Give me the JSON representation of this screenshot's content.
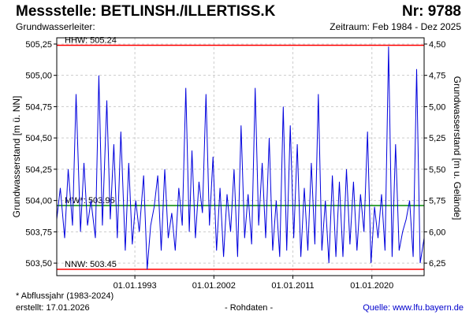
{
  "header": {
    "title": "Messstelle: BETLINSH./ILLERTISS.K",
    "number": "Nr: 9788",
    "aquifer_label": "Grundwasserleiter:",
    "period": "Zeitraum: Feb 1984 - Dez 2025"
  },
  "footer": {
    "footnote": "* Abflussjahr (1983-2024)",
    "created": "erstellt:  17.01.2026",
    "raw_data": "- Rohdaten -",
    "source": "Quelle: www.lfu.bayern.de"
  },
  "colors": {
    "series": "#0000dd",
    "hhw_line": "#ff0000",
    "nnw_line": "#ff0000",
    "mw_line": "#008800",
    "grid": "#cccccc"
  },
  "chart_data": {
    "type": "line",
    "title": "",
    "ylabel": "Grundwasserstand [m ü. NN]",
    "ylabel_right": "Grundwasserstand [m u. Gelände]",
    "xlim": [
      1984.1,
      2025.95
    ],
    "ylim": [
      503.4,
      505.3
    ],
    "y_ticks": [
      "505,25",
      "505,00",
      "504,75",
      "504,50",
      "504,25",
      "504,00",
      "503,75",
      "503,50"
    ],
    "y_right_ticks": [
      "4,50",
      "4,75",
      "5,00",
      "5,25",
      "5,50",
      "5,75",
      "6,00",
      "6,25"
    ],
    "x_ticks": [
      "01.01.1993",
      "01.01.2002",
      "01.01.2011",
      "01.01.2020"
    ],
    "grid": true,
    "reference_lines": [
      {
        "label": "HHW: 505.24",
        "value": 505.24
      },
      {
        "label": "MW*: 503.96",
        "value": 503.96
      },
      {
        "label": "NNW: 503.45",
        "value": 503.45
      }
    ],
    "series": [
      {
        "x": [
          1984.1,
          1984.5,
          1985.0,
          1985.4,
          1985.9,
          1986.3,
          1986.8,
          1987.2,
          1987.6,
          1988.0,
          1988.5,
          1988.9,
          1989.3,
          1989.8,
          1990.2,
          1990.6,
          1991.0,
          1991.4,
          1991.9,
          1992.3,
          1992.7,
          1993.1,
          1993.5,
          1994.0,
          1994.4,
          1994.8,
          1995.2,
          1995.6,
          1996.0,
          1996.4,
          1996.8,
          1997.2,
          1997.6,
          1998.0,
          1998.4,
          1998.8,
          1999.2,
          1999.5,
          1999.9,
          2000.3,
          2000.7,
          2001.1,
          2001.5,
          2001.9,
          2002.3,
          2002.7,
          2003.1,
          2003.5,
          2003.9,
          2004.3,
          2004.7,
          2005.1,
          2005.5,
          2005.9,
          2006.3,
          2006.7,
          2007.1,
          2007.5,
          2007.9,
          2008.3,
          2008.7,
          2009.1,
          2009.5,
          2009.9,
          2010.3,
          2010.7,
          2011.1,
          2011.5,
          2011.9,
          2012.3,
          2012.7,
          2013.1,
          2013.5,
          2013.9,
          2014.3,
          2014.7,
          2015.1,
          2015.5,
          2015.9,
          2016.3,
          2016.7,
          2017.1,
          2017.5,
          2017.9,
          2018.3,
          2018.7,
          2019.1,
          2019.5,
          2019.9,
          2020.3,
          2020.7,
          2021.1,
          2021.5,
          2021.9,
          2022.3,
          2022.7,
          2023.1,
          2023.5,
          2023.9,
          2024.3,
          2024.7,
          2025.1,
          2025.5,
          2025.95
        ],
        "y": [
          503.85,
          504.1,
          503.7,
          504.25,
          503.8,
          504.85,
          503.75,
          504.3,
          503.8,
          504.0,
          503.7,
          505.0,
          503.8,
          504.8,
          503.85,
          504.45,
          503.7,
          504.55,
          503.6,
          504.3,
          503.65,
          504.0,
          503.75,
          504.2,
          503.45,
          503.8,
          503.95,
          504.2,
          503.6,
          504.25,
          503.7,
          503.9,
          503.6,
          504.1,
          503.8,
          504.9,
          503.75,
          504.4,
          503.7,
          504.15,
          503.9,
          504.85,
          503.8,
          504.35,
          503.6,
          504.1,
          503.55,
          504.05,
          503.75,
          504.25,
          503.55,
          504.6,
          503.7,
          504.05,
          503.65,
          504.9,
          503.8,
          504.3,
          503.7,
          504.5,
          503.6,
          504.0,
          503.55,
          504.75,
          503.6,
          504.6,
          503.7,
          504.45,
          503.55,
          504.1,
          503.6,
          504.3,
          503.65,
          504.85,
          503.6,
          504.0,
          503.5,
          504.2,
          503.55,
          504.15,
          503.55,
          504.25,
          503.65,
          504.15,
          503.6,
          504.05,
          503.75,
          504.55,
          503.5,
          503.95,
          503.7,
          504.05,
          503.6,
          505.23,
          503.55,
          504.45,
          503.6,
          503.75,
          503.85,
          504.0,
          503.55,
          505.05,
          503.5,
          503.7
        ]
      }
    ]
  }
}
